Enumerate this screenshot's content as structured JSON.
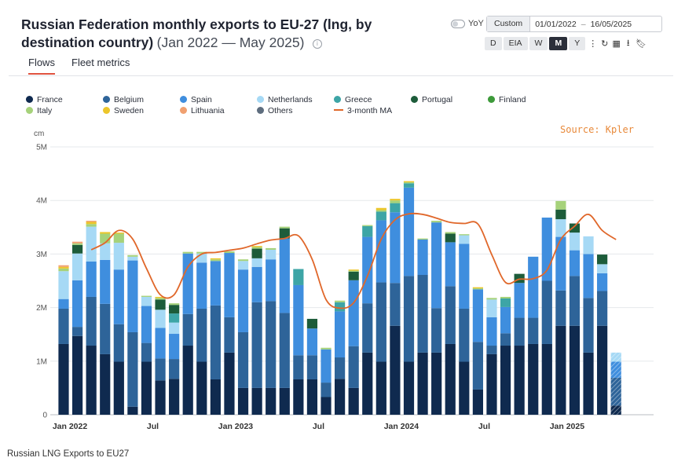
{
  "header": {
    "title": "Russian Federation monthly exports to EU-27 (lng, by destination country)",
    "subtitle": "(Jan 2022 — May 2025)"
  },
  "tabs": [
    {
      "label": "Flows"
    },
    {
      "label": "Fleet metrics"
    }
  ],
  "controls": {
    "yoy_label": "YoY",
    "date_mode": "Custom",
    "date_from": "01/01/2022",
    "date_sep": "–",
    "date_to": "16/05/2025",
    "periods": [
      "D",
      "EIA",
      "W",
      "M",
      "Y"
    ],
    "active_period": "M",
    "icons": [
      "more-vertical-icon",
      "refresh-icon",
      "qr-icon",
      "download-icon",
      "bookmark-icon"
    ]
  },
  "source_label": "Source: Kpler",
  "caption": "Russian LNG Exports to EU27",
  "chart_data": {
    "type": "bar",
    "stacked": true,
    "unit": "cm",
    "ylim": [
      0,
      5000000
    ],
    "yticks": [
      0,
      1000000,
      2000000,
      3000000,
      4000000,
      5000000
    ],
    "ytick_labels": [
      "0",
      "1M",
      "2M",
      "3M",
      "4M",
      "5M"
    ],
    "xticks": [
      {
        "index": 0,
        "label": "Jan 2022"
      },
      {
        "index": 6,
        "label": "Jul"
      },
      {
        "index": 12,
        "label": "Jan 2023"
      },
      {
        "index": 18,
        "label": "Jul"
      },
      {
        "index": 24,
        "label": "Jan 2024"
      },
      {
        "index": 30,
        "label": "Jul"
      },
      {
        "index": 36,
        "label": "Jan 2025"
      }
    ],
    "grid": true,
    "legend_position": "top-left",
    "categories": [
      "Jan 2022",
      "Feb 2022",
      "Mar 2022",
      "Apr 2022",
      "May 2022",
      "Jun 2022",
      "Jul 2022",
      "Aug 2022",
      "Sep 2022",
      "Oct 2022",
      "Nov 2022",
      "Dec 2022",
      "Jan 2023",
      "Feb 2023",
      "Mar 2023",
      "Apr 2023",
      "May 2023",
      "Jun 2023",
      "Jul 2023",
      "Aug 2023",
      "Sep 2023",
      "Oct 2023",
      "Nov 2023",
      "Dec 2023",
      "Jan 2024",
      "Feb 2024",
      "Mar 2024",
      "Apr 2024",
      "May 2024",
      "Jun 2024",
      "Jul 2024",
      "Aug 2024",
      "Sep 2024",
      "Oct 2024",
      "Nov 2024",
      "Dec 2024",
      "Jan 2025",
      "Feb 2025",
      "Mar 2025",
      "Apr 2025",
      "May 2025"
    ],
    "series": [
      {
        "name": "France",
        "color": "#0f2a4f",
        "values": [
          1320000,
          1470000,
          1290000,
          1130000,
          990000,
          150000,
          990000,
          640000,
          670000,
          1290000,
          990000,
          660000,
          1160000,
          500000,
          500000,
          500000,
          500000,
          660000,
          660000,
          330000,
          670000,
          500000,
          1160000,
          990000,
          1660000,
          990000,
          1160000,
          1160000,
          1320000,
          990000,
          470000,
          1130000,
          1290000,
          1290000,
          1320000,
          1320000,
          1660000,
          1660000,
          1160000,
          1660000,
          170000
        ]
      },
      {
        "name": "Belgium",
        "color": "#2e6499",
        "values": [
          660000,
          170000,
          910000,
          940000,
          700000,
          1390000,
          350000,
          410000,
          370000,
          590000,
          990000,
          1380000,
          660000,
          1040000,
          1600000,
          1620000,
          1400000,
          450000,
          450000,
          270000,
          400000,
          780000,
          920000,
          1480000,
          800000,
          1600000,
          1450000,
          830000,
          1080000,
          990000,
          890000,
          160000,
          230000,
          520000,
          490000,
          1180000,
          660000,
          930000,
          1020000,
          650000,
          520000
        ]
      },
      {
        "name": "Spain",
        "color": "#3f8ede",
        "values": [
          180000,
          870000,
          660000,
          820000,
          1020000,
          1340000,
          690000,
          570000,
          470000,
          1130000,
          860000,
          830000,
          1200000,
          1170000,
          660000,
          780000,
          1390000,
          1310000,
          500000,
          620000,
          860000,
          1230000,
          1240000,
          1160000,
          1320000,
          1650000,
          660000,
          1600000,
          820000,
          1210000,
          980000,
          530000,
          490000,
          650000,
          1140000,
          1180000,
          1000000,
          480000,
          820000,
          330000,
          300000
        ]
      },
      {
        "name": "Netherlands",
        "color": "#a6d9f5",
        "values": [
          520000,
          500000,
          650000,
          310000,
          500000,
          70000,
          170000,
          340000,
          210000,
          0,
          170000,
          0,
          0,
          160000,
          160000,
          180000,
          0,
          0,
          0,
          0,
          0,
          0,
          0,
          0,
          0,
          0,
          0,
          0,
          0,
          160000,
          0,
          330000,
          0,
          0,
          0,
          0,
          330000,
          330000,
          330000,
          170000,
          170000
        ]
      },
      {
        "name": "Greece",
        "color": "#3da5a6",
        "values": [
          0,
          0,
          0,
          0,
          0,
          0,
          0,
          0,
          170000,
          0,
          0,
          0,
          0,
          0,
          0,
          0,
          0,
          300000,
          0,
          0,
          170000,
          0,
          200000,
          160000,
          170000,
          80000,
          0,
          0,
          0,
          0,
          0,
          0,
          160000,
          0,
          0,
          0,
          0,
          0,
          0,
          0,
          0
        ]
      },
      {
        "name": "Portugal",
        "color": "#1d5c3a",
        "values": [
          0,
          160000,
          0,
          0,
          0,
          0,
          0,
          190000,
          160000,
          0,
          0,
          0,
          0,
          0,
          180000,
          0,
          190000,
          0,
          180000,
          0,
          0,
          160000,
          0,
          0,
          0,
          0,
          0,
          0,
          160000,
          0,
          0,
          0,
          0,
          170000,
          0,
          0,
          180000,
          170000,
          0,
          180000,
          0
        ]
      },
      {
        "name": "Finland",
        "color": "#3d9a3a",
        "values": [
          0,
          0,
          0,
          0,
          0,
          0,
          0,
          0,
          0,
          0,
          0,
          0,
          0,
          0,
          0,
          0,
          0,
          0,
          0,
          0,
          0,
          0,
          0,
          0,
          0,
          0,
          0,
          0,
          0,
          0,
          0,
          0,
          0,
          0,
          0,
          0,
          0,
          0,
          0,
          0,
          0
        ]
      },
      {
        "name": "Italy",
        "color": "#a6d27a",
        "values": [
          50000,
          30000,
          50000,
          180000,
          170000,
          30000,
          20000,
          30000,
          30000,
          30000,
          30000,
          30000,
          30000,
          30000,
          30000,
          30000,
          30000,
          0,
          0,
          30000,
          30000,
          20000,
          20000,
          30000,
          50000,
          20000,
          20000,
          30000,
          30000,
          20000,
          20000,
          30000,
          30000,
          0,
          0,
          0,
          160000,
          0,
          0,
          0,
          0
        ]
      },
      {
        "name": "Sweden",
        "color": "#ecc62a",
        "values": [
          30000,
          0,
          40000,
          30000,
          20000,
          0,
          0,
          20000,
          0,
          0,
          0,
          20000,
          0,
          0,
          20000,
          0,
          0,
          0,
          0,
          0,
          0,
          20000,
          0,
          40000,
          30000,
          20000,
          0,
          0,
          0,
          0,
          20000,
          0,
          0,
          0,
          0,
          0,
          0,
          0,
          0,
          0,
          0
        ]
      },
      {
        "name": "Lithuania",
        "color": "#f0a070",
        "values": [
          30000,
          30000,
          20000,
          0,
          0,
          0,
          0,
          0,
          0,
          0,
          0,
          0,
          0,
          0,
          0,
          0,
          0,
          0,
          0,
          0,
          0,
          0,
          0,
          0,
          0,
          0,
          0,
          0,
          0,
          0,
          0,
          0,
          0,
          0,
          0,
          0,
          0,
          0,
          0,
          0,
          0
        ]
      },
      {
        "name": "Others",
        "color": "#5e6d7e",
        "values": [
          0,
          0,
          0,
          0,
          0,
          0,
          0,
          0,
          0,
          0,
          0,
          0,
          0,
          0,
          0,
          0,
          0,
          0,
          0,
          0,
          0,
          0,
          0,
          0,
          0,
          0,
          0,
          0,
          0,
          0,
          0,
          0,
          0,
          0,
          0,
          0,
          0,
          0,
          0,
          0,
          0
        ]
      }
    ],
    "moving_average": {
      "name": "3-month MA",
      "color": "#e0672a",
      "values": [
        null,
        null,
        3080000,
        3210000,
        3440000,
        3280000,
        2730000,
        2240000,
        2240000,
        2760000,
        3000000,
        3030000,
        3070000,
        3110000,
        3190000,
        3260000,
        3290000,
        3340000,
        2900000,
        2150000,
        1990000,
        2090000,
        2590000,
        3280000,
        3640000,
        3750000,
        3740000,
        3670000,
        3590000,
        3570000,
        3560000,
        2990000,
        2470000,
        2530000,
        2540000,
        2700000,
        3270000,
        3520000,
        3740000,
        3440000,
        3270000
      ]
    }
  }
}
